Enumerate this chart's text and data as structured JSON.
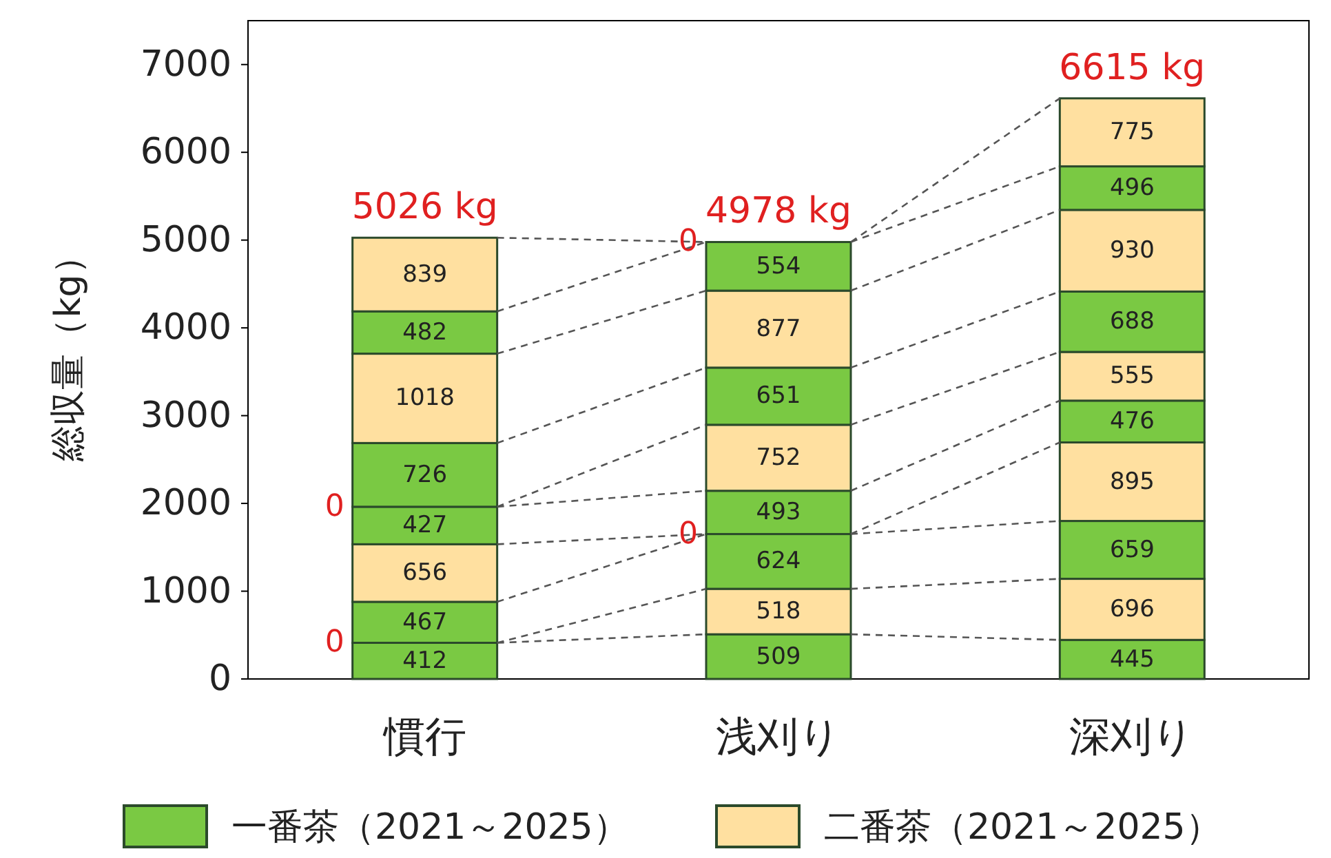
{
  "chart_data": {
    "type": "bar",
    "stacked": true,
    "categories": [
      "慣行",
      "浅刈り",
      "深刈り"
    ],
    "ylabel": "総収量（kg）",
    "ylim": [
      0,
      7500
    ],
    "yticks": [
      0,
      1000,
      2000,
      3000,
      4000,
      5000,
      6000,
      7000
    ],
    "legend": "bottom",
    "totals": [
      "5026 kg",
      "4978 kg",
      "6615 kg"
    ],
    "annotations": [
      {
        "text": "0",
        "x": "慣行",
        "y": 412
      },
      {
        "text": "0",
        "x": "慣行",
        "y": 1962
      },
      {
        "text": "0",
        "x": "浅刈り",
        "y": 1651
      },
      {
        "text": "0",
        "x": "浅刈り",
        "y": 4978
      }
    ],
    "series": [
      {
        "name": "一番茶（2021～2025）",
        "color": "#7ac943",
        "values": [
          412,
          509,
          445
        ],
        "value_labels": [
          "412",
          "509",
          "445"
        ]
      },
      {
        "name": "二番茶（2021～2025）",
        "color": "#ffe0a0",
        "values": [
          0,
          518,
          696
        ],
        "value_labels": [
          null,
          "518",
          "696"
        ]
      },
      {
        "color": "#7ac943",
        "values": [
          467,
          624,
          659
        ],
        "value_labels": [
          "467",
          "624",
          "659"
        ]
      },
      {
        "color": "#ffe0a0",
        "values": [
          656,
          0,
          895
        ],
        "value_labels": [
          "656",
          null,
          "895"
        ]
      },
      {
        "color": "#7ac943",
        "values": [
          427,
          493,
          476
        ],
        "value_labels": [
          "427",
          "493",
          "476"
        ]
      },
      {
        "color": "#ffe0a0",
        "values": [
          0,
          752,
          555
        ],
        "value_labels": [
          null,
          "752",
          "555"
        ]
      },
      {
        "color": "#7ac943",
        "values": [
          726,
          651,
          688
        ],
        "value_labels": [
          "726",
          "651",
          "688"
        ]
      },
      {
        "color": "#ffe0a0",
        "values": [
          1018,
          877,
          930
        ],
        "value_labels": [
          "1018",
          "877",
          "930"
        ]
      },
      {
        "color": "#7ac943",
        "values": [
          482,
          554,
          496
        ],
        "value_labels": [
          "482",
          "554",
          "496"
        ]
      },
      {
        "color": "#ffe0a0",
        "values": [
          839,
          0,
          775
        ],
        "value_labels": [
          "839",
          null,
          "775"
        ]
      }
    ]
  }
}
